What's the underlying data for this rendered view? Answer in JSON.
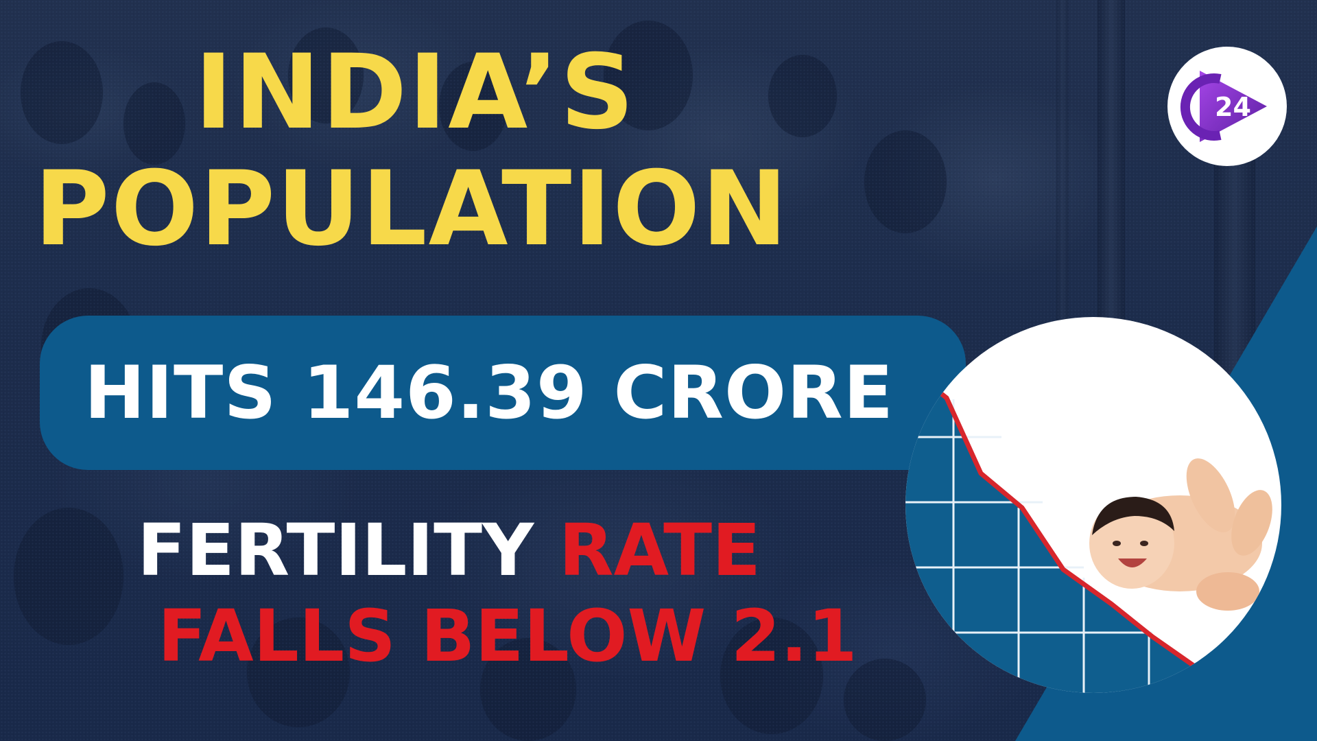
{
  "headline": {
    "line1": "INDIA’S",
    "line2": "POPULATION"
  },
  "banner": {
    "text": "HITS 146.39 CRORE"
  },
  "subhead": {
    "word_white": "FERTILITY",
    "word_red": "RATE",
    "line2": "FALLS BELOW 2.1"
  },
  "logo": {
    "text": "24",
    "icon": "play-icon"
  },
  "colors": {
    "headline": "#f7d94a",
    "banner_bg": "#0d5a8c",
    "accent_red": "#e11b22",
    "teal_panel": "#0d5a8c",
    "logo_purple": "#7a2bbf"
  }
}
